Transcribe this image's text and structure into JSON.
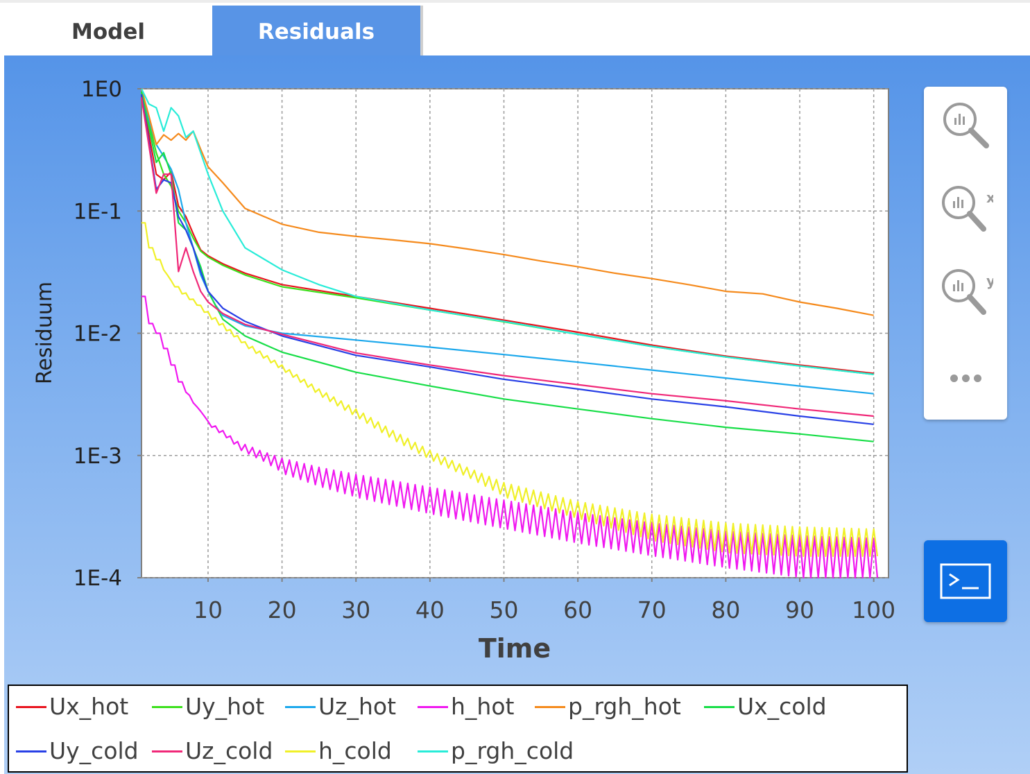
{
  "tabs": [
    {
      "label": "Model",
      "active": false
    },
    {
      "label": "Residuals",
      "active": true
    }
  ],
  "colors": {
    "tab_active": "#5894e6",
    "console_button": "#0d6fe4"
  },
  "toolbar": {
    "tools": [
      {
        "icon": "zoom-fit-icon"
      },
      {
        "icon": "zoom-x-icon",
        "label": "x"
      },
      {
        "icon": "zoom-y-icon",
        "label": "y"
      },
      {
        "icon": "more-icon"
      }
    ],
    "console_icon": "terminal-icon"
  },
  "chart_data": {
    "type": "line",
    "xlabel": "Time",
    "ylabel": "Residuum",
    "yscale": "log",
    "xlim": [
      1,
      102
    ],
    "ylim": [
      0.0001,
      1
    ],
    "xticks": [
      10,
      20,
      30,
      40,
      50,
      60,
      70,
      80,
      90,
      100
    ],
    "xtick_labels": [
      "10",
      "20",
      "30",
      "40",
      "50",
      "60",
      "70",
      "80",
      "90",
      "100"
    ],
    "yticks": [
      1,
      0.1,
      0.01,
      0.001,
      0.0001
    ],
    "ytick_labels": [
      "1E0",
      "1E-1",
      "1E-2",
      "1E-3",
      "1E-4"
    ],
    "grid": true,
    "legend_position": "bottom",
    "series": [
      {
        "name": "Ux_hot",
        "color": "#e8141e",
        "x": [
          1,
          3,
          4,
          5,
          6,
          7,
          8,
          9,
          10,
          12,
          15,
          20,
          30,
          40,
          50,
          60,
          70,
          80,
          90,
          100
        ],
        "y": [
          0.9,
          0.2,
          0.18,
          0.21,
          0.11,
          0.09,
          0.065,
          0.048,
          0.043,
          0.037,
          0.031,
          0.025,
          0.02,
          0.016,
          0.0128,
          0.0102,
          0.008,
          0.0065,
          0.0055,
          0.0047
        ]
      },
      {
        "name": "Uy_hot",
        "color": "#3ce01c",
        "x": [
          1,
          3,
          4,
          5,
          6,
          7,
          8,
          9,
          10,
          12,
          15,
          20,
          30,
          40,
          50,
          60,
          70,
          80,
          90,
          100
        ],
        "y": [
          0.95,
          0.3,
          0.2,
          0.16,
          0.1,
          0.08,
          0.06,
          0.047,
          0.042,
          0.036,
          0.03,
          0.024,
          0.0195,
          0.0155,
          0.0124,
          0.0098,
          0.0078,
          0.0064,
          0.0054,
          0.0046
        ]
      },
      {
        "name": "Uz_hot",
        "color": "#1ca8ec",
        "x": [
          1,
          3,
          4,
          5,
          6,
          7,
          8,
          9,
          10,
          11,
          12,
          15,
          20,
          30,
          40,
          50,
          60,
          70,
          80,
          90,
          100
        ],
        "y": [
          0.9,
          0.35,
          0.28,
          0.22,
          0.15,
          0.08,
          0.05,
          0.03,
          0.022,
          0.017,
          0.014,
          0.0115,
          0.01,
          0.0088,
          0.0077,
          0.0067,
          0.0058,
          0.005,
          0.0043,
          0.0037,
          0.0032
        ]
      },
      {
        "name": "h_hot",
        "color": "#f018f0",
        "sawtooth": true,
        "x": [
          1,
          2,
          3,
          4,
          5,
          6,
          7,
          8,
          9,
          10,
          12,
          14,
          17,
          20,
          25,
          30,
          40,
          50,
          60,
          70,
          80,
          90,
          100
        ],
        "y": [
          0.02,
          0.012,
          0.01,
          0.0075,
          0.0055,
          0.004,
          0.0033,
          0.0027,
          0.0023,
          0.0019,
          0.0016,
          0.0013,
          0.0011,
          0.00095,
          0.0008,
          0.0007,
          0.00055,
          0.00043,
          0.00034,
          0.00028,
          0.00024,
          0.00022,
          0.00021
        ],
        "min_y": [
          0.02,
          0.012,
          0.01,
          0.0075,
          0.0055,
          0.004,
          0.0031,
          0.0025,
          0.0021,
          0.0017,
          0.0014,
          0.0011,
          0.0009,
          0.0007,
          0.00055,
          0.00045,
          0.00033,
          0.00025,
          0.00019,
          0.00015,
          0.00012,
          0.0001,
          0.0001
        ]
      },
      {
        "name": "p_rgh_hot",
        "color": "#f58a1c",
        "x": [
          1,
          2,
          3,
          4,
          5,
          6,
          7,
          8,
          9,
          10,
          12,
          15,
          20,
          25,
          30,
          35,
          40,
          45,
          50,
          55,
          60,
          65,
          70,
          75,
          80,
          85,
          90,
          95,
          100
        ],
        "y": [
          1.0,
          0.6,
          0.35,
          0.42,
          0.38,
          0.43,
          0.38,
          0.45,
          0.32,
          0.23,
          0.17,
          0.105,
          0.078,
          0.067,
          0.062,
          0.058,
          0.054,
          0.049,
          0.044,
          0.039,
          0.035,
          0.031,
          0.028,
          0.025,
          0.022,
          0.021,
          0.018,
          0.016,
          0.014
        ]
      },
      {
        "name": "Ux_cold",
        "color": "#18de48",
        "x": [
          1,
          3,
          4,
          5,
          6,
          7,
          8,
          9,
          10,
          12,
          15,
          20,
          30,
          40,
          50,
          60,
          70,
          80,
          90,
          100
        ],
        "y": [
          0.95,
          0.25,
          0.3,
          0.2,
          0.08,
          0.07,
          0.05,
          0.035,
          0.022,
          0.013,
          0.0095,
          0.007,
          0.0048,
          0.0037,
          0.0029,
          0.0024,
          0.002,
          0.0017,
          0.0015,
          0.0013
        ]
      },
      {
        "name": "Uy_cold",
        "color": "#2840e6",
        "x": [
          1,
          3,
          4,
          5,
          6,
          7,
          8,
          9,
          10,
          12,
          15,
          20,
          30,
          40,
          50,
          60,
          70,
          80,
          90,
          100
        ],
        "y": [
          0.9,
          0.15,
          0.18,
          0.17,
          0.09,
          0.07,
          0.05,
          0.032,
          0.022,
          0.016,
          0.0125,
          0.0095,
          0.0066,
          0.0053,
          0.0042,
          0.0035,
          0.0029,
          0.0025,
          0.0021,
          0.0018
        ]
      },
      {
        "name": "Uz_cold",
        "color": "#f02878",
        "x": [
          1,
          3,
          4,
          5,
          6,
          7,
          8,
          9,
          10,
          12,
          15,
          20,
          30,
          40,
          50,
          60,
          70,
          80,
          90,
          100
        ],
        "y": [
          0.85,
          0.14,
          0.2,
          0.2,
          0.032,
          0.05,
          0.032,
          0.022,
          0.018,
          0.0145,
          0.0118,
          0.0098,
          0.0069,
          0.0055,
          0.0045,
          0.0038,
          0.0032,
          0.0028,
          0.0024,
          0.0021
        ]
      },
      {
        "name": "h_cold",
        "color": "#f0f028",
        "sawtooth": true,
        "x": [
          1,
          2,
          3,
          4,
          5,
          6,
          8,
          10,
          12,
          15,
          20,
          25,
          30,
          35,
          40,
          45,
          50,
          60,
          70,
          80,
          90,
          100
        ],
        "y": [
          0.08,
          0.05,
          0.04,
          0.033,
          0.027,
          0.024,
          0.019,
          0.015,
          0.012,
          0.0085,
          0.0055,
          0.0035,
          0.0024,
          0.0016,
          0.0011,
          0.0008,
          0.0006,
          0.00042,
          0.00033,
          0.00028,
          0.00026,
          0.00025
        ],
        "min_y": [
          0.08,
          0.05,
          0.04,
          0.03,
          0.024,
          0.021,
          0.017,
          0.013,
          0.0105,
          0.0075,
          0.0048,
          0.003,
          0.002,
          0.0013,
          0.0009,
          0.00065,
          0.00045,
          0.0003,
          0.0002,
          0.00016,
          0.00015,
          0.00015
        ]
      },
      {
        "name": "p_rgh_cold",
        "color": "#28ecd8",
        "x": [
          1,
          2,
          3,
          4,
          5,
          6,
          7,
          8,
          9,
          10,
          12,
          15,
          20,
          25,
          30,
          40,
          50,
          60,
          70,
          80,
          90,
          100
        ],
        "y": [
          1.0,
          0.75,
          0.7,
          0.45,
          0.7,
          0.6,
          0.4,
          0.45,
          0.3,
          0.2,
          0.1,
          0.05,
          0.033,
          0.025,
          0.02,
          0.0155,
          0.0125,
          0.0098,
          0.0078,
          0.0064,
          0.0054,
          0.0046
        ]
      }
    ]
  }
}
